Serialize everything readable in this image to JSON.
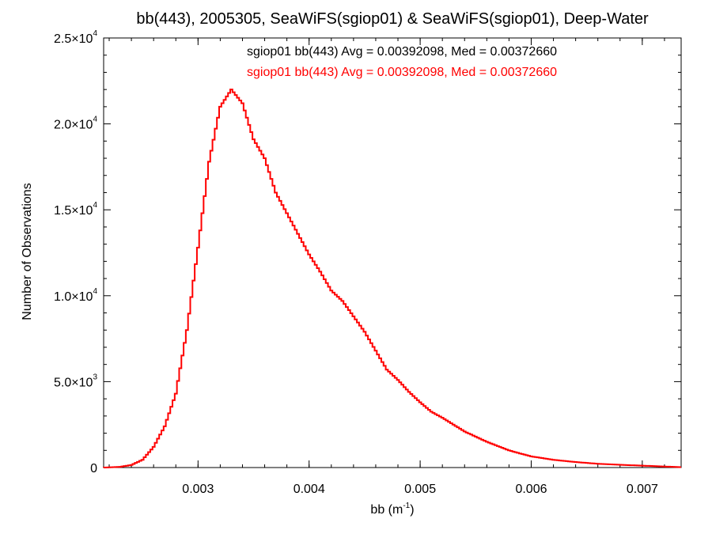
{
  "chart_data": {
    "type": "histogram",
    "title": "bb(443), 2005305, SeaWiFS(sgiop01) & SeaWiFS(sgiop01), Deep-Water",
    "xlabel": "bb (m",
    "xlabel_sup": "-1",
    "xlabel_close": ")",
    "ylabel": "Number of Observations",
    "xlim": [
      0.00215,
      0.00735
    ],
    "ylim": [
      0,
      25000
    ],
    "x_ticks": [
      {
        "value": 0.003,
        "label": "0.003"
      },
      {
        "value": 0.004,
        "label": "0.004"
      },
      {
        "value": 0.005,
        "label": "0.005"
      },
      {
        "value": 0.006,
        "label": "0.006"
      },
      {
        "value": 0.007,
        "label": "0.007"
      }
    ],
    "y_ticks": [
      {
        "value": 0,
        "mant": "0",
        "exp": ""
      },
      {
        "value": 5000,
        "mant": "5.0×10",
        "exp": "3"
      },
      {
        "value": 10000,
        "mant": "1.0×10",
        "exp": "4"
      },
      {
        "value": 15000,
        "mant": "1.5×10",
        "exp": "4"
      },
      {
        "value": 20000,
        "mant": "2.0×10",
        "exp": "4"
      },
      {
        "value": 25000,
        "mant": "2.5×10",
        "exp": "4"
      }
    ],
    "legend": [
      {
        "text": "sgiop01 bb(443) Avg = 0.00392098, Med = 0.00372660",
        "color": "#000000"
      },
      {
        "text": "sgiop01 bb(443) Avg = 0.00392098, Med = 0.00372660",
        "color": "#ff0000"
      }
    ],
    "legend_position": "top-center",
    "series": [
      {
        "color": "#ff0000",
        "points": [
          [
            0.00215,
            0
          ],
          [
            0.0023,
            40
          ],
          [
            0.0024,
            150
          ],
          [
            0.0025,
            450
          ],
          [
            0.0026,
            1200
          ],
          [
            0.0027,
            2400
          ],
          [
            0.0028,
            4300
          ],
          [
            0.0029,
            8000
          ],
          [
            0.003,
            12800
          ],
          [
            0.0031,
            17800
          ],
          [
            0.0032,
            21000
          ],
          [
            0.0033,
            22000
          ],
          [
            0.0034,
            21200
          ],
          [
            0.0035,
            19100
          ],
          [
            0.0036,
            18000
          ],
          [
            0.0037,
            16000
          ],
          [
            0.0038,
            14800
          ],
          [
            0.0039,
            13600
          ],
          [
            0.004,
            12400
          ],
          [
            0.0041,
            11400
          ],
          [
            0.0042,
            10300
          ],
          [
            0.0043,
            9700
          ],
          [
            0.0044,
            8800
          ],
          [
            0.0045,
            7900
          ],
          [
            0.0046,
            6800
          ],
          [
            0.0047,
            5700
          ],
          [
            0.0048,
            5100
          ],
          [
            0.0049,
            4400
          ],
          [
            0.005,
            3800
          ],
          [
            0.0051,
            3250
          ],
          [
            0.0052,
            2900
          ],
          [
            0.0053,
            2500
          ],
          [
            0.0054,
            2100
          ],
          [
            0.0055,
            1800
          ],
          [
            0.0056,
            1500
          ],
          [
            0.0057,
            1250
          ],
          [
            0.0058,
            1000
          ],
          [
            0.0059,
            820
          ],
          [
            0.006,
            650
          ],
          [
            0.0062,
            450
          ],
          [
            0.0064,
            320
          ],
          [
            0.0066,
            220
          ],
          [
            0.0068,
            160
          ],
          [
            0.007,
            110
          ],
          [
            0.0072,
            60
          ],
          [
            0.00735,
            20
          ]
        ],
        "bin_width": 2e-05
      }
    ]
  }
}
